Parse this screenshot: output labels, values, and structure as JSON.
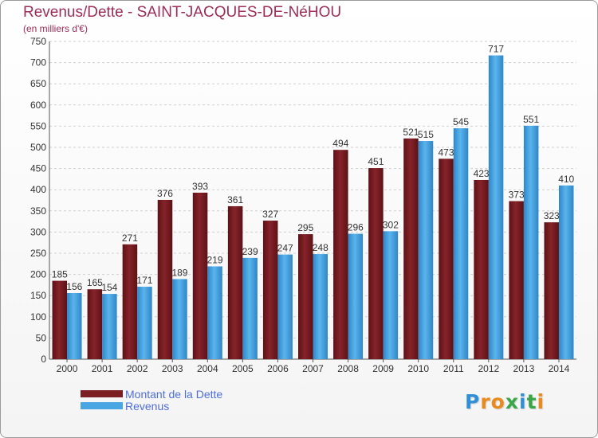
{
  "header": {
    "title": "Revenus/Dette - SAINT-JACQUES-DE-NéHOU",
    "subtitle": "(en milliers d'€)"
  },
  "chart_data": {
    "type": "bar",
    "title": "Revenus/Dette - SAINT-JACQUES-DE-NéHOU",
    "subtitle": "(en milliers d'€)",
    "categories": [
      "2000",
      "2001",
      "2002",
      "2003",
      "2004",
      "2005",
      "2006",
      "2007",
      "2008",
      "2009",
      "2010",
      "2011",
      "2012",
      "2013",
      "2014"
    ],
    "series": [
      {
        "name": "Montant de la Dette",
        "color": "#7b1e23",
        "values": [
          185,
          165,
          271,
          376,
          393,
          361,
          327,
          295,
          494,
          451,
          521,
          473,
          423,
          373,
          323
        ]
      },
      {
        "name": "Revenus",
        "color": "#49a6e3",
        "values": [
          156,
          154,
          171,
          189,
          219,
          239,
          247,
          248,
          296,
          302,
          515,
          545,
          717,
          551,
          410
        ]
      }
    ],
    "ylim": [
      0,
      750
    ],
    "yticks": [
      0,
      50,
      100,
      150,
      200,
      250,
      300,
      350,
      400,
      450,
      500,
      550,
      600,
      650,
      700,
      750
    ],
    "grid": true,
    "legend": "bottom-left"
  },
  "legend": {
    "items": [
      {
        "label": "Montant de la Dette",
        "color": "#7b1e23"
      },
      {
        "label": "Revenus",
        "color": "#49a6e3"
      }
    ]
  },
  "logo": {
    "text": "Proxiti",
    "letters": [
      {
        "ch": "P",
        "color": "#2f8fd8"
      },
      {
        "ch": "r",
        "color": "#e98a1f"
      },
      {
        "ch": "o",
        "color": "#e98a1f"
      },
      {
        "ch": "x",
        "color": "#3aa64a"
      },
      {
        "ch": "i",
        "color": "#2f8fd8"
      },
      {
        "ch": "t",
        "color": "#3aa64a"
      },
      {
        "ch": "i",
        "color": "#e98a1f"
      }
    ]
  }
}
